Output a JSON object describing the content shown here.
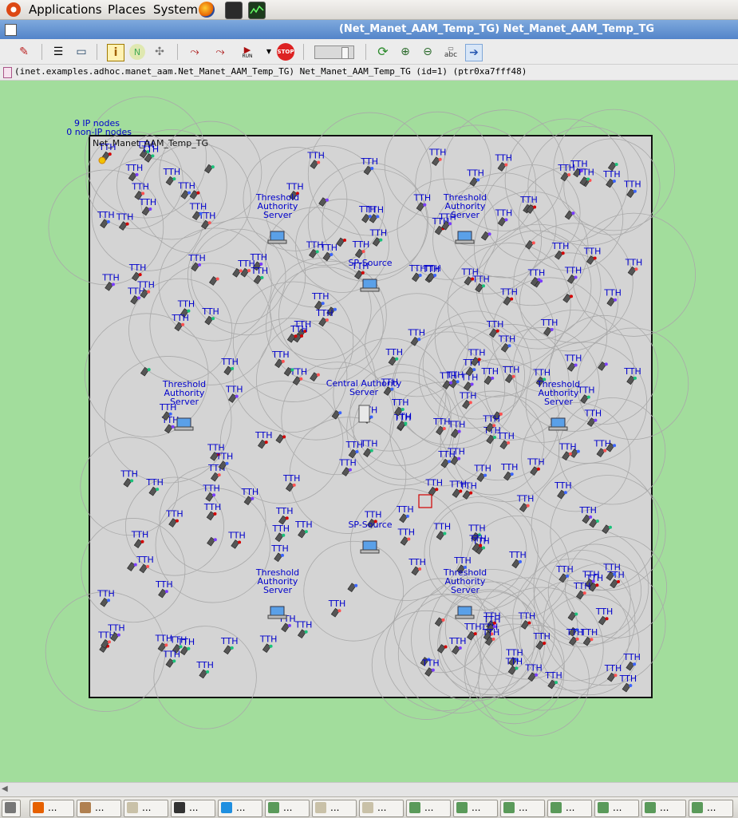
{
  "top_panel": {
    "menus": [
      "Applications",
      "Places",
      "System"
    ],
    "launchers": [
      "firefox-icon",
      "terminal-icon",
      "system-monitor-icon"
    ]
  },
  "window": {
    "title": "(Net_Manet_AAM_Temp_TG) Net_Manet_AAM_Temp_TG"
  },
  "toolbar": {
    "run_label": "RUN",
    "stop_label": "STOP",
    "abc_label": "abc",
    "tools": [
      "step-icon",
      "inspect-icon",
      "log-icon",
      "info-icon",
      "network-icon",
      "settings-icon",
      "fast-run-icon",
      "express-run-icon",
      "run-icon",
      "dropdown-icon",
      "stop-icon",
      "speed-slider",
      "refresh-icon",
      "zoom-in-icon",
      "zoom-out-icon",
      "label-icon",
      "arrow-icon"
    ]
  },
  "path_bar": {
    "text": "(inet.examples.adhoc.manet_aam.Net_Manet_AAM_Temp_TG) Net_Manet_AAM_Temp_TG  (id=1)  (ptr0xa7fff48)"
  },
  "canvas": {
    "ip_nodes": "9 IP nodes",
    "non_ip_nodes": "0 non-IP nodes",
    "network_name": "Net_Manet_AAM_Temp_TG",
    "node_label": "TTH",
    "servers": [
      {
        "lines": [
          "Threshold",
          "Authority",
          "Server"
        ],
        "icon": "laptop"
      },
      {
        "lines": [
          "Threshold",
          "Authority",
          "Server"
        ],
        "icon": "laptop"
      },
      {
        "lines": [
          "Threshold",
          "Authority",
          "Server"
        ],
        "icon": "laptop"
      },
      {
        "lines": [
          "Threshold",
          "Authority",
          "Server"
        ],
        "icon": "laptop"
      },
      {
        "lines": [
          "Threshold",
          "Authority",
          "Server"
        ],
        "icon": "laptop"
      },
      {
        "lines": [
          "Threshold",
          "Authority",
          "Server"
        ],
        "icon": "laptop"
      },
      {
        "lines": [
          "SP-Source"
        ],
        "icon": "laptop"
      },
      {
        "lines": [
          "SP-Source"
        ],
        "icon": "laptop"
      },
      {
        "lines": [
          "Central Authority",
          "Server"
        ],
        "icon": "server"
      }
    ]
  },
  "colors": {
    "canvas_bg": "#a2dd9c",
    "area_bg": "#d4d4d4",
    "label_blue": "#0000cc",
    "titlebar": "#5f8dcf"
  },
  "taskbar": {
    "items": [
      {
        "icon": "camera-icon",
        "label": ""
      },
      {
        "icon": "firefox-icon",
        "label": "..."
      },
      {
        "icon": "archive-icon",
        "label": "..."
      },
      {
        "icon": "folder-icon",
        "label": "..."
      },
      {
        "icon": "terminal-icon",
        "label": "..."
      },
      {
        "icon": "skype-icon",
        "label": "..."
      },
      {
        "icon": "editor-icon",
        "label": "..."
      },
      {
        "icon": "folder-icon",
        "label": "..."
      },
      {
        "icon": "folder-icon",
        "label": "..."
      },
      {
        "icon": "editor-icon",
        "label": "..."
      },
      {
        "icon": "editor-icon",
        "label": "..."
      },
      {
        "icon": "editor-icon",
        "label": "..."
      },
      {
        "icon": "editor-icon",
        "label": "..."
      },
      {
        "icon": "editor-icon",
        "label": "..."
      },
      {
        "icon": "editor-icon",
        "label": "..."
      },
      {
        "icon": "editor-icon",
        "label": "..."
      }
    ]
  }
}
